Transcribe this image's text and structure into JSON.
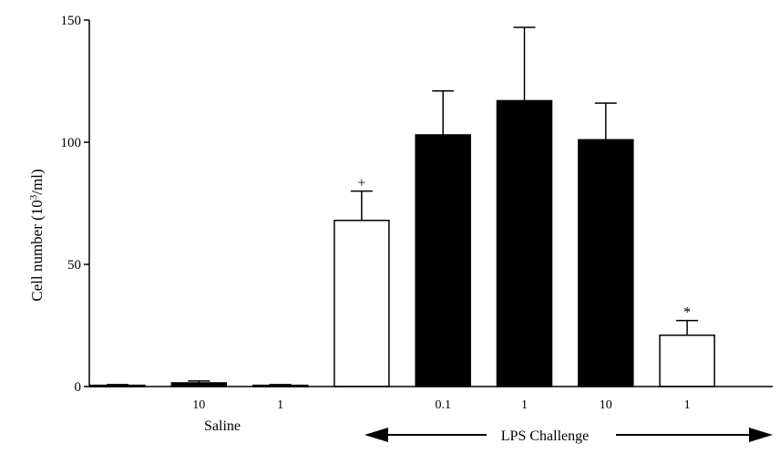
{
  "chart_data": {
    "type": "bar",
    "ylabel": "Cell number (10",
    "ylabel_sup": "3",
    "ylabel_tail": "/ml)",
    "ylim": [
      0,
      150
    ],
    "yticks": [
      0,
      50,
      100,
      150
    ],
    "grid": false,
    "bars": [
      {
        "label": "",
        "value": 0.5,
        "error": 0.3,
        "fill": "#000000",
        "marker": ""
      },
      {
        "label": "10",
        "value": 1.5,
        "error": 0.8,
        "fill": "#000000",
        "marker": ""
      },
      {
        "label": "1",
        "value": 0.5,
        "error": 0.3,
        "fill": "#000000",
        "marker": ""
      },
      {
        "label": "",
        "value": 68,
        "error": 12,
        "fill": "#ffffff",
        "marker": "+"
      },
      {
        "label": "0.1",
        "value": 103,
        "error": 18,
        "fill": "#000000",
        "marker": ""
      },
      {
        "label": "1",
        "value": 117,
        "error": 30,
        "fill": "#000000",
        "marker": ""
      },
      {
        "label": "10",
        "value": 101,
        "error": 15,
        "fill": "#000000",
        "marker": ""
      },
      {
        "label": "1",
        "value": 21,
        "error": 6,
        "fill": "#ffffff",
        "marker": "*"
      }
    ],
    "group_labels": {
      "saline": "Saline",
      "lps": "LPS Challenge"
    }
  },
  "colors": {
    "axis": "#000000",
    "dark_bar": "#000000",
    "open_bar": "#ffffff"
  }
}
